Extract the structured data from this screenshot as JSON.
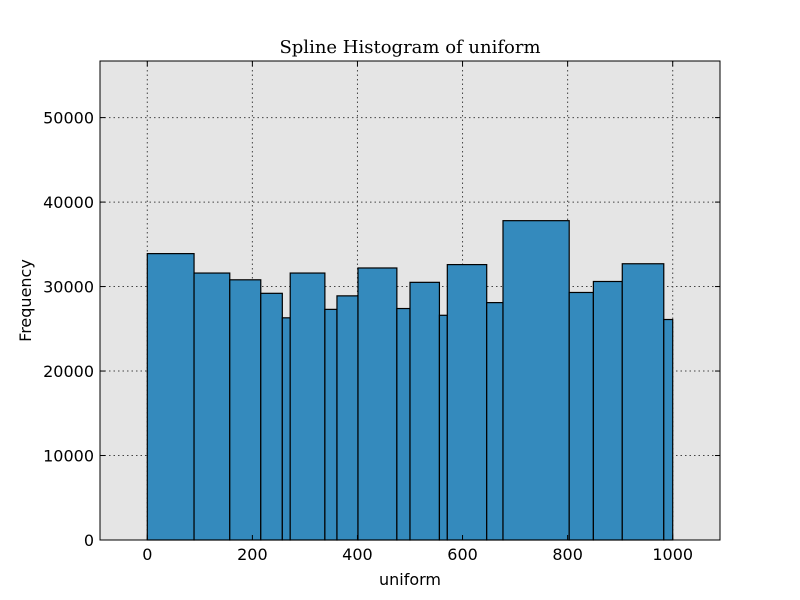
{
  "chart_data": {
    "type": "bar",
    "title": "Spline Histogram of uniform",
    "xlabel": "uniform",
    "ylabel": "Frequency",
    "xlim": [
      -90,
      1090
    ],
    "ylim": [
      0,
      56700
    ],
    "grid": true,
    "background": "#e5e5e5",
    "bar_color": "#348abd",
    "xticks": [
      0,
      200,
      400,
      600,
      800,
      1000
    ],
    "yticks": [
      0,
      10000,
      20000,
      30000,
      40000,
      50000
    ],
    "bins": [
      {
        "start": 0,
        "end": 89,
        "value": 33900
      },
      {
        "start": 89,
        "end": 157,
        "value": 31600
      },
      {
        "start": 157,
        "end": 216,
        "value": 30800
      },
      {
        "start": 216,
        "end": 257,
        "value": 29200
      },
      {
        "start": 257,
        "end": 272,
        "value": 26300
      },
      {
        "start": 272,
        "end": 338,
        "value": 31600
      },
      {
        "start": 338,
        "end": 361,
        "value": 27300
      },
      {
        "start": 361,
        "end": 401,
        "value": 28900
      },
      {
        "start": 401,
        "end": 475,
        "value": 32200
      },
      {
        "start": 475,
        "end": 500,
        "value": 27400
      },
      {
        "start": 500,
        "end": 556,
        "value": 30500
      },
      {
        "start": 556,
        "end": 571,
        "value": 26600
      },
      {
        "start": 571,
        "end": 646,
        "value": 32600
      },
      {
        "start": 646,
        "end": 677,
        "value": 28100
      },
      {
        "start": 677,
        "end": 803,
        "value": 37800
      },
      {
        "start": 803,
        "end": 849,
        "value": 29300
      },
      {
        "start": 849,
        "end": 904,
        "value": 30600
      },
      {
        "start": 904,
        "end": 983,
        "value": 32700
      },
      {
        "start": 983,
        "end": 1000,
        "value": 26100
      }
    ]
  }
}
